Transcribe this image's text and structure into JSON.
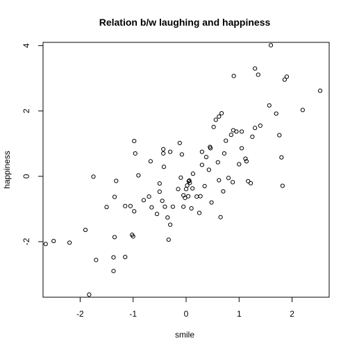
{
  "chart_data": {
    "type": "scatter",
    "title": "Relation b/w laughing and happiness",
    "xlabel": "smile",
    "ylabel": "happiness",
    "xlim": [
      -2.7,
      2.7
    ],
    "ylim": [
      -3.7,
      4.1
    ],
    "x_ticks": [
      -2,
      -1,
      0,
      1,
      2
    ],
    "x_tick_labels": [
      "-2",
      "-1",
      "0",
      "1",
      "2"
    ],
    "y_ticks": [
      -2,
      0,
      2,
      4
    ],
    "y_tick_labels": [
      "-2",
      "0",
      "2",
      "4"
    ],
    "grid": false,
    "legend": "none",
    "marker": "open-circle",
    "color": "#000000",
    "points": [
      {
        "x": -2.65,
        "y": -2.07
      },
      {
        "x": -2.5,
        "y": -1.98
      },
      {
        "x": -2.2,
        "y": -2.03
      },
      {
        "x": -1.9,
        "y": -1.64
      },
      {
        "x": -1.83,
        "y": -3.62
      },
      {
        "x": -1.75,
        "y": -0.01
      },
      {
        "x": -1.7,
        "y": -2.56
      },
      {
        "x": -1.5,
        "y": -0.94
      },
      {
        "x": -1.37,
        "y": -2.9
      },
      {
        "x": -1.37,
        "y": -2.48
      },
      {
        "x": -1.35,
        "y": -1.86
      },
      {
        "x": -1.35,
        "y": -0.63
      },
      {
        "x": -1.32,
        "y": -0.14
      },
      {
        "x": -1.15,
        "y": -2.47
      },
      {
        "x": -1.15,
        "y": -0.91
      },
      {
        "x": -1.05,
        "y": -0.91
      },
      {
        "x": -1.02,
        "y": -1.79
      },
      {
        "x": -1.0,
        "y": -1.84
      },
      {
        "x": -0.98,
        "y": -1.07
      },
      {
        "x": -0.98,
        "y": 1.08
      },
      {
        "x": -0.96,
        "y": 0.7
      },
      {
        "x": -0.9,
        "y": 0.03
      },
      {
        "x": -0.8,
        "y": -0.73
      },
      {
        "x": -0.7,
        "y": -0.62
      },
      {
        "x": -0.67,
        "y": 0.46
      },
      {
        "x": -0.65,
        "y": -0.95
      },
      {
        "x": -0.55,
        "y": -1.15
      },
      {
        "x": -0.5,
        "y": -0.47
      },
      {
        "x": -0.5,
        "y": -0.22
      },
      {
        "x": -0.45,
        "y": -0.75
      },
      {
        "x": -0.43,
        "y": 0.7
      },
      {
        "x": -0.43,
        "y": 0.83
      },
      {
        "x": -0.42,
        "y": 0.29
      },
      {
        "x": -0.4,
        "y": -0.93
      },
      {
        "x": -0.35,
        "y": -1.26
      },
      {
        "x": -0.33,
        "y": -1.94
      },
      {
        "x": -0.3,
        "y": 0.75
      },
      {
        "x": -0.3,
        "y": -1.48
      },
      {
        "x": -0.25,
        "y": -0.93
      },
      {
        "x": -0.15,
        "y": -0.39
      },
      {
        "x": -0.12,
        "y": 1.02
      },
      {
        "x": -0.1,
        "y": -0.04
      },
      {
        "x": -0.08,
        "y": 0.67
      },
      {
        "x": -0.05,
        "y": -0.93
      },
      {
        "x": -0.05,
        "y": -0.58
      },
      {
        "x": -0.02,
        "y": -0.66
      },
      {
        "x": 0.0,
        "y": -0.39
      },
      {
        "x": 0.02,
        "y": -0.28
      },
      {
        "x": 0.04,
        "y": -0.61
      },
      {
        "x": 0.05,
        "y": -0.15
      },
      {
        "x": 0.06,
        "y": -0.13
      },
      {
        "x": 0.07,
        "y": -0.2
      },
      {
        "x": 0.1,
        "y": -0.98
      },
      {
        "x": 0.12,
        "y": -0.37
      },
      {
        "x": 0.13,
        "y": 0.08
      },
      {
        "x": 0.2,
        "y": -0.62
      },
      {
        "x": 0.25,
        "y": -1.12
      },
      {
        "x": 0.27,
        "y": -0.61
      },
      {
        "x": 0.3,
        "y": 0.75
      },
      {
        "x": 0.3,
        "y": 0.35
      },
      {
        "x": 0.35,
        "y": -0.3
      },
      {
        "x": 0.38,
        "y": 0.59
      },
      {
        "x": 0.43,
        "y": 0.2
      },
      {
        "x": 0.45,
        "y": 0.9
      },
      {
        "x": 0.46,
        "y": 0.86
      },
      {
        "x": 0.48,
        "y": -0.8
      },
      {
        "x": 0.52,
        "y": 1.51
      },
      {
        "x": 0.56,
        "y": 1.73
      },
      {
        "x": 0.6,
        "y": 0.43
      },
      {
        "x": 0.62,
        "y": 1.83
      },
      {
        "x": 0.62,
        "y": -0.12
      },
      {
        "x": 0.65,
        "y": -1.25
      },
      {
        "x": 0.67,
        "y": 1.93
      },
      {
        "x": 0.7,
        "y": -0.46
      },
      {
        "x": 0.72,
        "y": 0.7
      },
      {
        "x": 0.75,
        "y": 1.09
      },
      {
        "x": 0.8,
        "y": -0.05
      },
      {
        "x": 0.85,
        "y": 1.27
      },
      {
        "x": 0.88,
        "y": -0.18
      },
      {
        "x": 0.89,
        "y": 1.41
      },
      {
        "x": 0.9,
        "y": 3.07
      },
      {
        "x": 0.95,
        "y": 1.37
      },
      {
        "x": 1.0,
        "y": 0.37
      },
      {
        "x": 1.05,
        "y": 1.37
      },
      {
        "x": 1.05,
        "y": 0.86
      },
      {
        "x": 1.12,
        "y": 0.54
      },
      {
        "x": 1.14,
        "y": 0.46
      },
      {
        "x": 1.17,
        "y": -0.15
      },
      {
        "x": 1.22,
        "y": -0.21
      },
      {
        "x": 1.25,
        "y": 1.21
      },
      {
        "x": 1.3,
        "y": 1.48
      },
      {
        "x": 1.3,
        "y": 3.3
      },
      {
        "x": 1.36,
        "y": 3.11
      },
      {
        "x": 1.4,
        "y": 1.55
      },
      {
        "x": 1.57,
        "y": 2.17
      },
      {
        "x": 1.6,
        "y": 4.01
      },
      {
        "x": 1.7,
        "y": 1.92
      },
      {
        "x": 1.76,
        "y": 1.26
      },
      {
        "x": 1.8,
        "y": 0.58
      },
      {
        "x": 1.82,
        "y": -0.29
      },
      {
        "x": 1.86,
        "y": 2.96
      },
      {
        "x": 1.9,
        "y": 3.05
      },
      {
        "x": 2.2,
        "y": 2.03
      },
      {
        "x": 2.53,
        "y": 2.62
      }
    ]
  }
}
